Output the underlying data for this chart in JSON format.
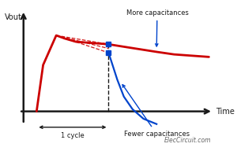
{
  "bg_color": "#ffffff",
  "axis_color": "#1a1a1a",
  "red_color": "#cc0000",
  "blue_color": "#0044cc",
  "annot_color": "#1a1a1a",
  "watermark": "ElecCircuit.com",
  "label_vout": "Vout",
  "label_time": "Time",
  "label_more": "More capacitances",
  "label_fewer": "Fewer capacitances",
  "label_cycle": "⟵1 cycle⟶",
  "xlim": [
    0,
    10
  ],
  "ylim": [
    -1.8,
    5.2
  ],
  "origin_x": 0.9,
  "origin_y": 0.0,
  "axis_end_x": 9.6,
  "axis_end_y": 4.8,
  "x_left_dashed": 1.5,
  "x_peak": 2.4,
  "x_cycle_end": 4.8,
  "x_right": 9.4
}
